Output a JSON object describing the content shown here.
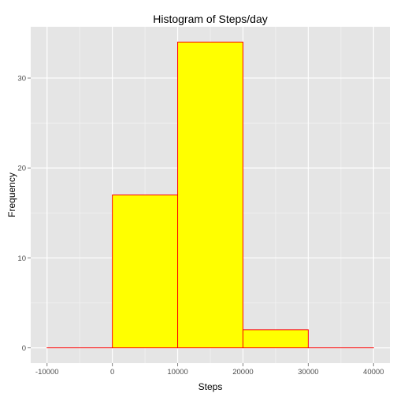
{
  "chart_data": {
    "type": "bar",
    "title": "Histogram of Steps/day",
    "xlabel": "Steps",
    "ylabel": "Frequency",
    "bins": [
      {
        "x0": -10000,
        "x1": 0,
        "value": 0
      },
      {
        "x0": 0,
        "x1": 10000,
        "value": 17
      },
      {
        "x0": 10000,
        "x1": 20000,
        "value": 34
      },
      {
        "x0": 20000,
        "x1": 30000,
        "value": 2
      },
      {
        "x0": 30000,
        "x1": 40000,
        "value": 0
      }
    ],
    "xlim": [
      -12500,
      42500
    ],
    "ylim": [
      -1.7,
      35.7
    ],
    "xticks": [
      -10000,
      0,
      10000,
      20000,
      30000,
      40000
    ],
    "yticks": [
      0,
      10,
      20,
      30
    ],
    "bar_fill": "#ffff00",
    "bar_stroke": "#ff0000",
    "panel_background": "#e5e5e5",
    "grid": true
  }
}
